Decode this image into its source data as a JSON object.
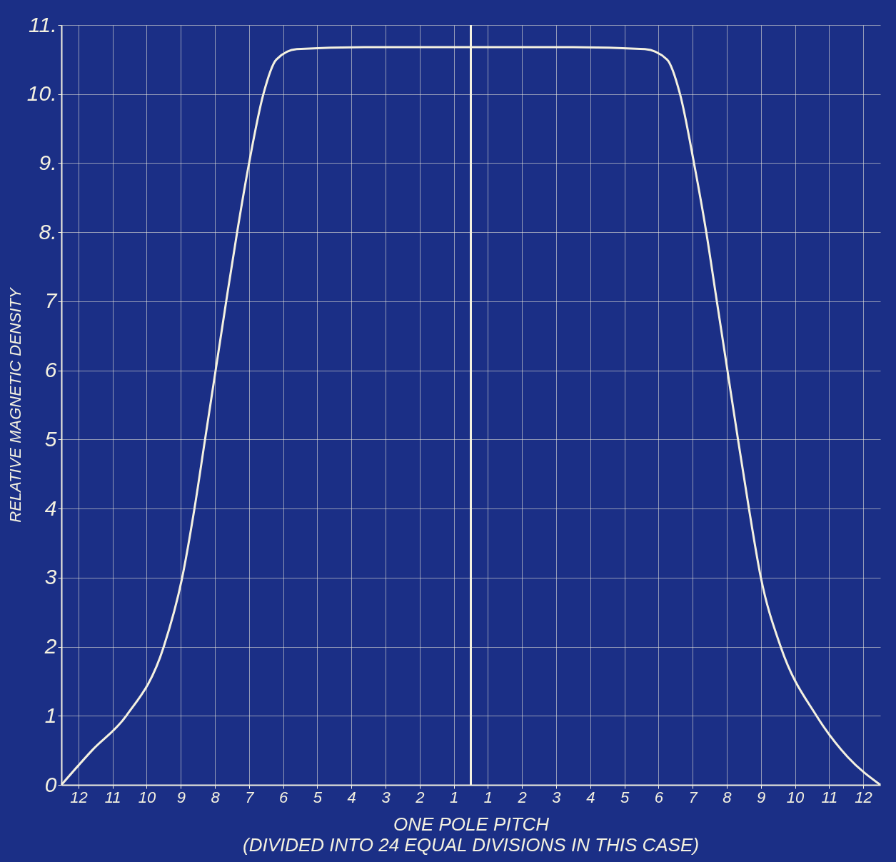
{
  "chart_data": {
    "type": "line",
    "ylabel": "RELATIVE MAGNETIC DENSITY",
    "xlabel": "ONE POLE PITCH",
    "annotations": [
      "(DIVIDED INTO 24 EQUAL DIVISIONS IN THIS CASE)"
    ],
    "series": [
      {
        "color": "#f4f1e0",
        "x": [
          -12,
          -11.1,
          -10.1,
          -9,
          -8.46,
          -8.1,
          -7.79,
          -7.48,
          -7.17,
          -6.85,
          -6.5,
          -6.08,
          -5.7,
          -5.1,
          -3,
          0,
          3,
          5.1,
          5.75,
          6.13,
          6.54,
          6.9,
          7.21,
          7.52,
          7.83,
          8.15,
          8.5,
          9.08,
          10.13,
          11.05,
          12
        ],
        "values": [
          0,
          0.5,
          1,
          2,
          3,
          4,
          5,
          6,
          7,
          8,
          9,
          10,
          10.5,
          10.65,
          10.68,
          10.68,
          10.68,
          10.65,
          10.5,
          10,
          9,
          8,
          7,
          6,
          5,
          4,
          3,
          2,
          1,
          0.4,
          0
        ]
      }
    ],
    "xlim": [
      -12,
      12
    ],
    "ylim": [
      0,
      11
    ],
    "xticks": [
      {
        "value": -11.5,
        "label": "12"
      },
      {
        "value": -10.5,
        "label": "11"
      },
      {
        "value": -9.5,
        "label": "10"
      },
      {
        "value": -8.5,
        "label": "9"
      },
      {
        "value": -7.5,
        "label": "8"
      },
      {
        "value": -6.5,
        "label": "7"
      },
      {
        "value": -5.5,
        "label": "6"
      },
      {
        "value": -4.5,
        "label": "5"
      },
      {
        "value": -3.5,
        "label": "4"
      },
      {
        "value": -2.5,
        "label": "3"
      },
      {
        "value": -1.5,
        "label": "2"
      },
      {
        "value": -0.5,
        "label": "1"
      },
      {
        "value": 0.5,
        "label": "1"
      },
      {
        "value": 1.5,
        "label": "2"
      },
      {
        "value": 2.5,
        "label": "3"
      },
      {
        "value": 3.5,
        "label": "4"
      },
      {
        "value": 4.5,
        "label": "5"
      },
      {
        "value": 5.5,
        "label": "6"
      },
      {
        "value": 6.5,
        "label": "7"
      },
      {
        "value": 7.5,
        "label": "8"
      },
      {
        "value": 8.5,
        "label": "9"
      },
      {
        "value": 9.5,
        "label": "10"
      },
      {
        "value": 10.5,
        "label": "11"
      },
      {
        "value": 11.5,
        "label": "12"
      }
    ],
    "yticks": [
      0,
      1,
      2,
      3,
      4,
      5,
      6,
      7,
      {
        "value": 8,
        "label": "8."
      },
      {
        "value": 9,
        "label": "9."
      },
      {
        "value": 10,
        "label": "10."
      },
      {
        "value": 11,
        "label": "11."
      }
    ],
    "ref_lines": [
      {
        "axis": "x",
        "value": 0,
        "label": null
      }
    ],
    "grid": true,
    "marker": "none",
    "line_style": "solid"
  }
}
